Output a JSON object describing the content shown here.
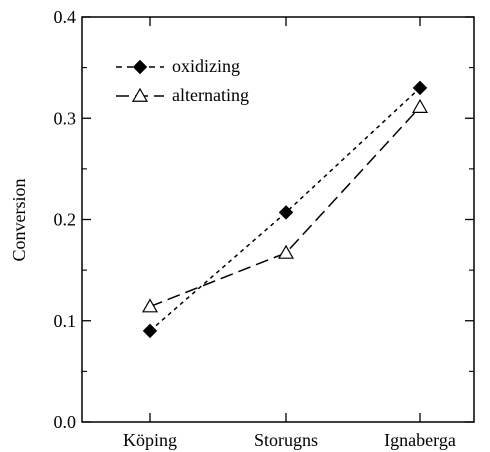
{
  "chart_data": {
    "type": "line",
    "title": "",
    "xlabel": "",
    "ylabel": "Conversion",
    "categories": [
      "Köping",
      "Storugns",
      "Ignaberga"
    ],
    "ylim": [
      0.0,
      0.4
    ],
    "yticks": [
      "0.0",
      "0.1",
      "0.2",
      "0.3",
      "0.4"
    ],
    "grid": false,
    "legend_position": "top-left",
    "series": [
      {
        "name": "oxidizing",
        "values": [
          0.09,
          0.207,
          0.33
        ],
        "marker": "filled-diamond",
        "line": "dotted",
        "color": "#000000"
      },
      {
        "name": "alternating",
        "values": [
          0.114,
          0.167,
          0.311
        ],
        "marker": "open-triangle",
        "line": "dashed",
        "color": "#000000"
      }
    ]
  }
}
